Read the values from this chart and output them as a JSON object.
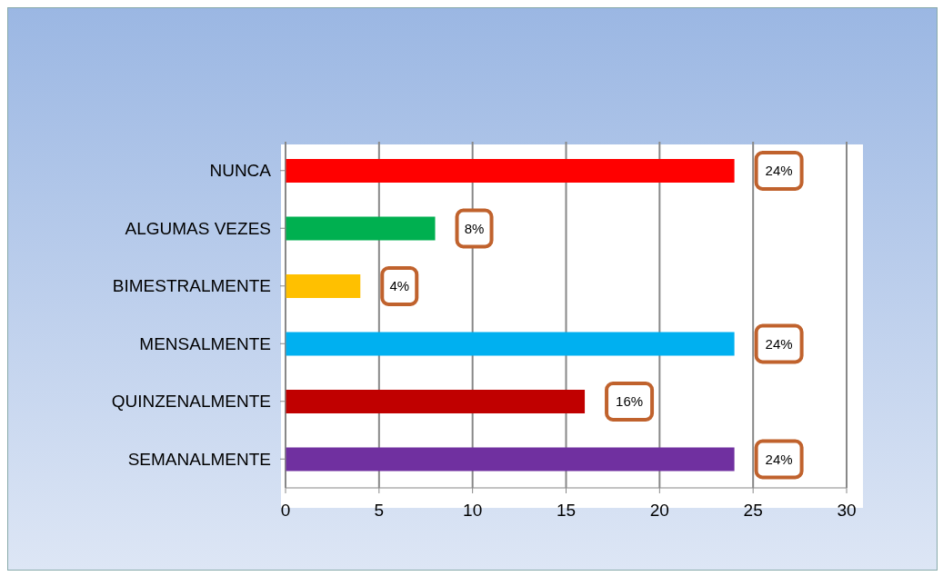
{
  "chart_data": {
    "type": "bar",
    "orientation": "horizontal",
    "categories": [
      "NUNCA",
      "ALGUMAS VEZES",
      "BIMESTRALMENTE",
      "MENSALMENTE",
      "QUINZENALMENTE",
      "SEMANALMENTE"
    ],
    "values": [
      24,
      8,
      4,
      24,
      16,
      24
    ],
    "colors": [
      "#ff0000",
      "#00b050",
      "#ffc000",
      "#00b0f0",
      "#c00000",
      "#7030a0"
    ],
    "value_labels": [
      "24%",
      "8%",
      "4%",
      "24%",
      "16%",
      "24%"
    ],
    "xlim": [
      0,
      30
    ],
    "xticks": [
      0,
      5,
      10,
      15,
      20,
      25,
      30
    ],
    "grid": "x",
    "legend": false
  }
}
